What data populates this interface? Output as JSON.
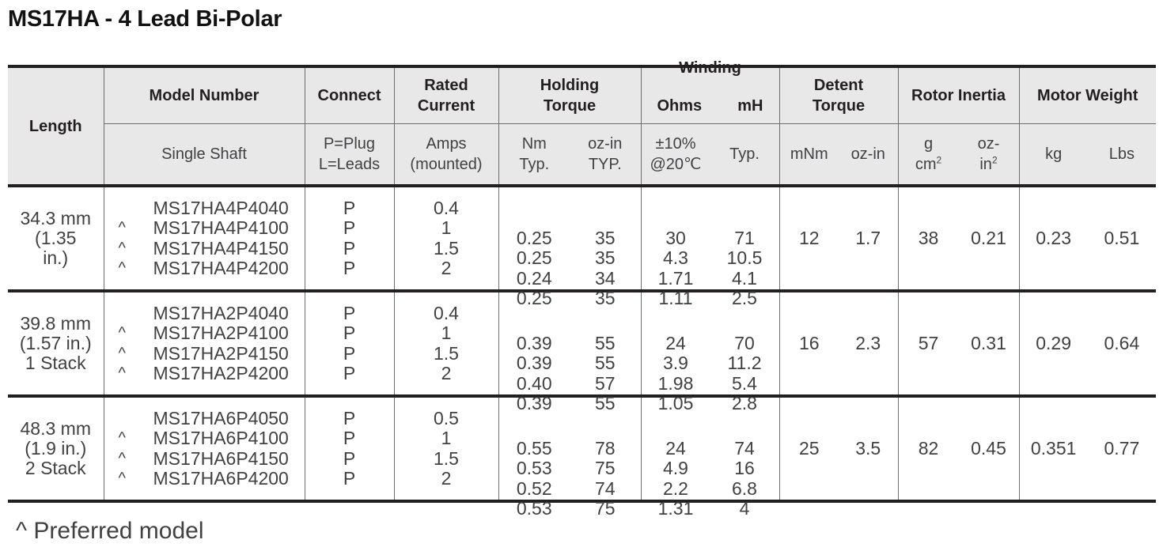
{
  "title": "MS17HA - 4 Lead Bi-Polar",
  "header": {
    "length": "Length",
    "model_number": "Model Number",
    "connect": "Connect",
    "rated_current": [
      "Rated",
      "Current"
    ],
    "holding_torque": [
      "Holding",
      "Torque"
    ],
    "winding": "Winding",
    "winding_ohms": "Ohms",
    "winding_mh": "mH",
    "detent_torque": [
      "Detent",
      "Torque"
    ],
    "rotor_inertia": "Rotor Inertia",
    "motor_weight": "Motor Weight"
  },
  "subheader": {
    "single_shaft": "Single Shaft",
    "connect": [
      "P=Plug",
      "L=Leads"
    ],
    "current": [
      "Amps",
      "(mounted)"
    ],
    "nm": [
      "Nm",
      "Typ."
    ],
    "ozin": [
      "oz-in",
      "TYP."
    ],
    "ohms": [
      "±10%",
      "@20℃"
    ],
    "mh": "Typ.",
    "mnm": "mNm",
    "detent_ozin": "oz-in",
    "inertia_g": [
      "g",
      "cm"
    ],
    "inertia_oz": [
      "oz-",
      "in"
    ],
    "sup2": "2",
    "kg": "kg",
    "lbs": "Lbs"
  },
  "groups": [
    {
      "length": [
        "34.3 mm",
        "(1.35",
        "in.)"
      ],
      "rows": [
        {
          "caret": "",
          "model": "MS17HA4P4040",
          "connect": "P",
          "amps": "0.4",
          "nm": "0.25",
          "ozin": "35",
          "ohms": "30",
          "mh": "71"
        },
        {
          "caret": "^",
          "model": "MS17HA4P4100",
          "connect": "P",
          "amps": "1",
          "nm": "0.25",
          "ozin": "35",
          "ohms": "4.3",
          "mh": "10.5"
        },
        {
          "caret": "^",
          "model": "MS17HA4P4150",
          "connect": "P",
          "amps": "1.5",
          "nm": "0.24",
          "ozin": "34",
          "ohms": "1.71",
          "mh": "4.1"
        },
        {
          "caret": "^",
          "model": "MS17HA4P4200",
          "connect": "P",
          "amps": "2",
          "nm": "0.25",
          "ozin": "35",
          "ohms": "1.11",
          "mh": "2.5"
        }
      ],
      "detent_mnm": "12",
      "detent_ozin": "1.7",
      "inertia_g": "38",
      "inertia_oz": "0.21",
      "kg": "0.23",
      "lbs": "0.51"
    },
    {
      "length": [
        "39.8 mm",
        "(1.57 in.)",
        "1 Stack"
      ],
      "rows": [
        {
          "caret": "",
          "model": "MS17HA2P4040",
          "connect": "P",
          "amps": "0.4",
          "nm": "0.39",
          "ozin": "55",
          "ohms": "24",
          "mh": "70"
        },
        {
          "caret": "^",
          "model": "MS17HA2P4100",
          "connect": "P",
          "amps": "1",
          "nm": "0.39",
          "ozin": "55",
          "ohms": "3.9",
          "mh": "11.2"
        },
        {
          "caret": "^",
          "model": "MS17HA2P4150",
          "connect": "P",
          "amps": "1.5",
          "nm": "0.40",
          "ozin": "57",
          "ohms": "1.98",
          "mh": "5.4"
        },
        {
          "caret": "^",
          "model": "MS17HA2P4200",
          "connect": "P",
          "amps": "2",
          "nm": "0.39",
          "ozin": "55",
          "ohms": "1.05",
          "mh": "2.8"
        }
      ],
      "detent_mnm": "16",
      "detent_ozin": "2.3",
      "inertia_g": "57",
      "inertia_oz": "0.31",
      "kg": "0.29",
      "lbs": "0.64"
    },
    {
      "length": [
        "48.3 mm",
        "(1.9 in.)",
        "2 Stack"
      ],
      "rows": [
        {
          "caret": "",
          "model": "MS17HA6P4050",
          "connect": "P",
          "amps": "0.5",
          "nm": "0.55",
          "ozin": "78",
          "ohms": "24",
          "mh": "74"
        },
        {
          "caret": "^",
          "model": "MS17HA6P4100",
          "connect": "P",
          "amps": "1",
          "nm": "0.53",
          "ozin": "75",
          "ohms": "4.9",
          "mh": "16"
        },
        {
          "caret": "^",
          "model": "MS17HA6P4150",
          "connect": "P",
          "amps": "1.5",
          "nm": "0.52",
          "ozin": "74",
          "ohms": "2.2",
          "mh": "6.8"
        },
        {
          "caret": "^",
          "model": "MS17HA6P4200",
          "connect": "P",
          "amps": "2",
          "nm": "0.53",
          "ozin": "75",
          "ohms": "1.31",
          "mh": "4"
        }
      ],
      "detent_mnm": "25",
      "detent_ozin": "3.5",
      "inertia_g": "82",
      "inertia_oz": "0.45",
      "kg": "0.351",
      "lbs": "0.77"
    }
  ],
  "footnote": "^ Preferred model"
}
